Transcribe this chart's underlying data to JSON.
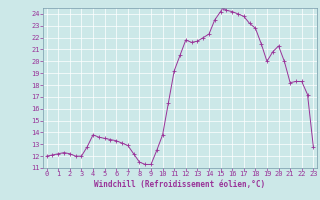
{
  "x": [
    0,
    0.5,
    1,
    1.5,
    2,
    2.5,
    3,
    3.5,
    4,
    4.5,
    5,
    5.5,
    6,
    6.5,
    7,
    7.5,
    8,
    8.5,
    9,
    9.5,
    10,
    10.5,
    11,
    11.5,
    12,
    12.5,
    13,
    13.5,
    14,
    14.5,
    15,
    15.2,
    15.5,
    16,
    16.5,
    17,
    17.5,
    18,
    18.5,
    19,
    19.5,
    20,
    20.5,
    21,
    21.5,
    22,
    22.5,
    23
  ],
  "y": [
    12.0,
    12.1,
    12.2,
    12.3,
    12.2,
    12.0,
    12.0,
    12.8,
    13.8,
    13.6,
    13.5,
    13.4,
    13.3,
    13.1,
    12.9,
    12.2,
    11.5,
    11.3,
    11.3,
    12.5,
    13.8,
    16.5,
    19.2,
    20.5,
    21.8,
    21.6,
    21.7,
    22.0,
    22.3,
    23.5,
    24.2,
    24.5,
    24.3,
    24.2,
    24.0,
    23.8,
    23.2,
    22.8,
    21.5,
    20.0,
    20.8,
    21.3,
    20.0,
    18.2,
    18.3,
    18.3,
    17.2,
    12.8
  ],
  "line_color": "#993399",
  "marker": "+",
  "marker_color": "#993399",
  "bg_color": "#cce8e8",
  "grid_color": "#aadddd",
  "xlabel": "Windchill (Refroidissement éolien,°C)",
  "ylim": [
    11,
    24.5
  ],
  "xlim": [
    -0.3,
    23.3
  ],
  "yticks": [
    11,
    12,
    13,
    14,
    15,
    16,
    17,
    18,
    19,
    20,
    21,
    22,
    23,
    24
  ],
  "xticks": [
    0,
    1,
    2,
    3,
    4,
    5,
    6,
    7,
    8,
    9,
    10,
    11,
    12,
    13,
    14,
    15,
    16,
    17,
    18,
    19,
    20,
    21,
    22,
    23
  ],
  "xlabel_color": "#993399",
  "tick_color": "#993399",
  "tick_fontsize": 5.0,
  "xlabel_fontsize": 5.5,
  "line_width": 0.7
}
